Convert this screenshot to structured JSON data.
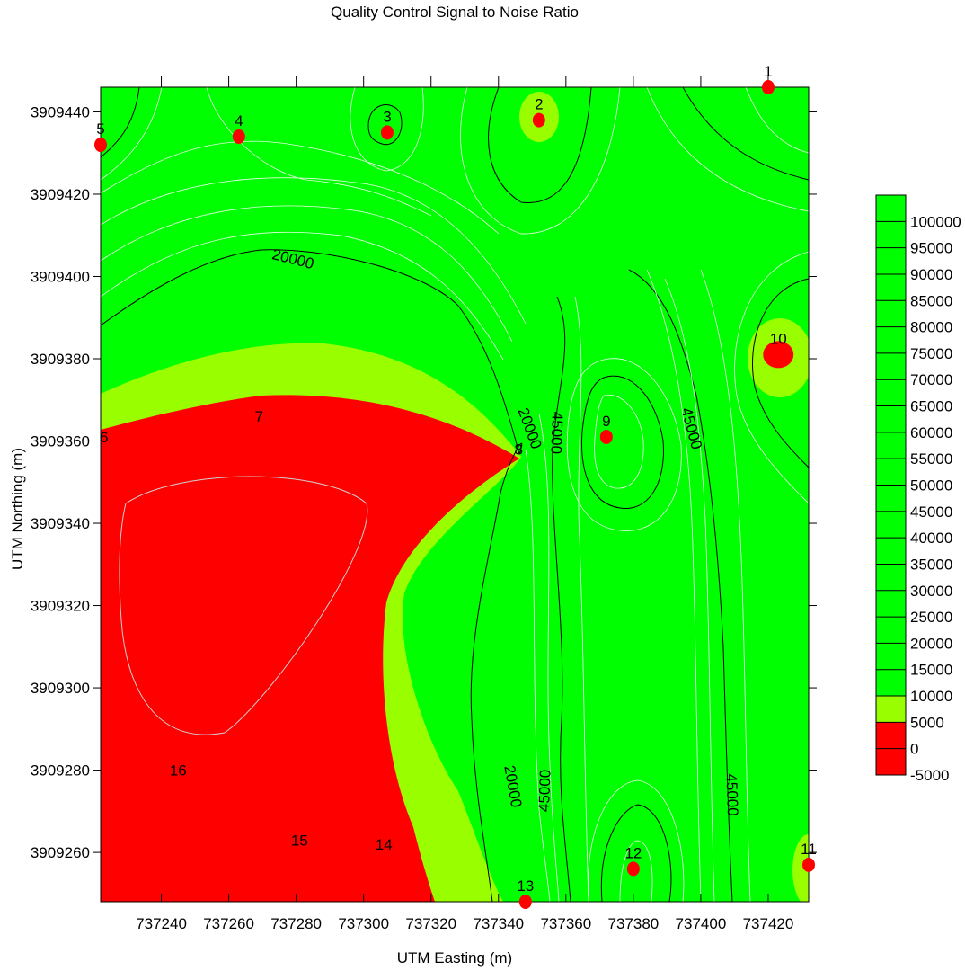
{
  "chart_data": {
    "type": "heatmap",
    "title": "Quality Control Signal to Noise Ratio",
    "xlabel": "UTM Easting (m)",
    "ylabel": "UTM Northing (m)",
    "xlim": [
      737222,
      737432
    ],
    "ylim": [
      3909248,
      3909446
    ],
    "x_ticks": [
      737240,
      737260,
      737280,
      737300,
      737320,
      737340,
      737360,
      737380,
      737400,
      737420
    ],
    "y_ticks": [
      3909260,
      3909280,
      3909300,
      3909320,
      3909340,
      3909360,
      3909380,
      3909400,
      3909420,
      3909440
    ],
    "colorbar": {
      "levels": [
        -5000,
        0,
        5000,
        10000,
        15000,
        20000,
        25000,
        30000,
        35000,
        40000,
        45000,
        50000,
        55000,
        60000,
        65000,
        70000,
        75000,
        80000,
        85000,
        90000,
        95000,
        100000
      ],
      "bands": [
        {
          "from": -5000,
          "to": 5000,
          "color": "#ff0000"
        },
        {
          "from": 5000,
          "to": 10000,
          "color": "#99ff00"
        },
        {
          "from": 10000,
          "to": 105000,
          "color": "#00ff00"
        }
      ]
    },
    "contour_labels": [
      {
        "text": "20000",
        "x": 737279,
        "y": 3909404,
        "angle": 14
      },
      {
        "text": "20000",
        "x": 737349,
        "y": 3909363,
        "angle": 70
      },
      {
        "text": "45000",
        "x": 737357,
        "y": 3909362,
        "angle": 92
      },
      {
        "text": "45000",
        "x": 737397,
        "y": 3909363,
        "angle": 75
      },
      {
        "text": "20000",
        "x": 737344,
        "y": 3909276,
        "angle": 80
      },
      {
        "text": "45000",
        "x": 737354,
        "y": 3909275,
        "angle": -88
      },
      {
        "text": "45000",
        "x": 737409,
        "y": 3909274,
        "angle": 88
      }
    ],
    "stations": [
      {
        "label": "1",
        "x": 737420,
        "y": 3909446,
        "marker": true
      },
      {
        "label": "2",
        "x": 737352,
        "y": 3909438,
        "marker": true
      },
      {
        "label": "3",
        "x": 737307,
        "y": 3909435,
        "marker": true
      },
      {
        "label": "4",
        "x": 737263,
        "y": 3909434,
        "marker": true
      },
      {
        "label": "5",
        "x": 737222,
        "y": 3909432,
        "marker": true
      },
      {
        "label": "6",
        "x": 737223,
        "y": 3909361,
        "marker": false
      },
      {
        "label": "7",
        "x": 737269,
        "y": 3909366,
        "marker": false
      },
      {
        "label": "8",
        "x": 737346,
        "y": 3909358,
        "marker": false
      },
      {
        "label": "9",
        "x": 737372,
        "y": 3909361,
        "marker": true
      },
      {
        "label": "10",
        "x": 737423,
        "y": 3909381,
        "marker": true
      },
      {
        "label": "11",
        "x": 737432,
        "y": 3909257,
        "marker": true
      },
      {
        "label": "12",
        "x": 737380,
        "y": 3909256,
        "marker": true
      },
      {
        "label": "13",
        "x": 737348,
        "y": 3909248,
        "marker": true
      },
      {
        "label": "14",
        "x": 737306,
        "y": 3909262,
        "marker": false
      },
      {
        "label": "15",
        "x": 737281,
        "y": 3909263,
        "marker": false
      },
      {
        "label": "16",
        "x": 737245,
        "y": 3909280,
        "marker": false
      }
    ],
    "grid": false,
    "legend": "right"
  }
}
